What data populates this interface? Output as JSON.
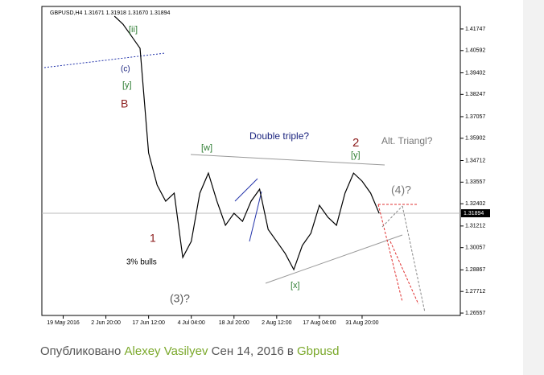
{
  "chart_data": {
    "type": "line",
    "title": "GBPUSD,H4 1.31671 1.31918 1.31670 1.31894",
    "categories": [
      null,
      null,
      "19 May 2016",
      null,
      null,
      null,
      null,
      "2 Jun 20:00",
      null,
      null,
      null,
      null,
      "17 Jun 12:00",
      null,
      null,
      null,
      null,
      "4 Jul 04:00",
      null,
      null,
      null,
      null,
      "18 Jul 20:00",
      null,
      null,
      null,
      null,
      "2 Aug 12:00",
      null,
      null,
      null,
      null,
      "17 Aug 04:00",
      null,
      null,
      null,
      null,
      "31 Aug 20:00",
      null,
      null,
      null,
      null,
      null,
      null,
      null,
      null,
      null,
      null,
      null
    ],
    "series": [
      {
        "name": "GBPUSD",
        "color": "#000000",
        "values": [
          null,
          null,
          null,
          null,
          null,
          null,
          null,
          null,
          1.4243,
          1.42,
          1.4136,
          1.4071,
          1.3512,
          1.334,
          1.3254,
          1.3297,
          1.2953,
          1.3039,
          1.3297,
          1.3404,
          1.3254,
          1.3125,
          1.3189,
          1.3146,
          1.3254,
          1.3318,
          1.3103,
          1.3039,
          1.2974,
          1.2888,
          1.3017,
          1.3082,
          1.3232,
          1.3168,
          1.3125,
          1.3297,
          1.3404,
          1.3361,
          1.3297,
          1.3189,
          null,
          null,
          null,
          null,
          null,
          null,
          null,
          null,
          null
        ]
      }
    ],
    "ylim": [
      1.2643,
      1.4295
    ],
    "yticks": [
      1.26557,
      1.27712,
      1.28867,
      1.30057,
      1.31212,
      1.32402,
      1.33557,
      1.34712,
      1.35902,
      1.37057,
      1.38247,
      1.39402,
      1.40592,
      1.41747
    ],
    "last_price": 1.31894,
    "annotations": [
      {
        "text": "(c)",
        "color": "#1a237e"
      },
      {
        "text": "[y]",
        "color": "#2e7d32"
      },
      {
        "text": "B",
        "color": "#8b1a1a"
      },
      {
        "text": "[ii]",
        "color": "#2e7d32"
      },
      {
        "text": "Double triple?",
        "color": "#1a237e"
      },
      {
        "text": "2",
        "color": "#8b1a1a"
      },
      {
        "text": "[y]",
        "color": "#2e7d32"
      },
      {
        "text": "Alt. Triangl?",
        "color": "#777777"
      },
      {
        "text": "[w]",
        "color": "#2e7d32"
      },
      {
        "text": "(4)?",
        "color": "#777777"
      },
      {
        "text": "1",
        "color": "#8b1a1a"
      },
      {
        "text": "3% bulls",
        "color": "#000000"
      },
      {
        "text": "(3)?",
        "color": "#555555"
      },
      {
        "text": "[x]",
        "color": "#2e7d32"
      }
    ]
  },
  "caption": {
    "prefix": "Опубликовано",
    "author": "Alexey Vasilyev",
    "date": "Сен 14, 2016 в",
    "category": "Gbpusd"
  }
}
